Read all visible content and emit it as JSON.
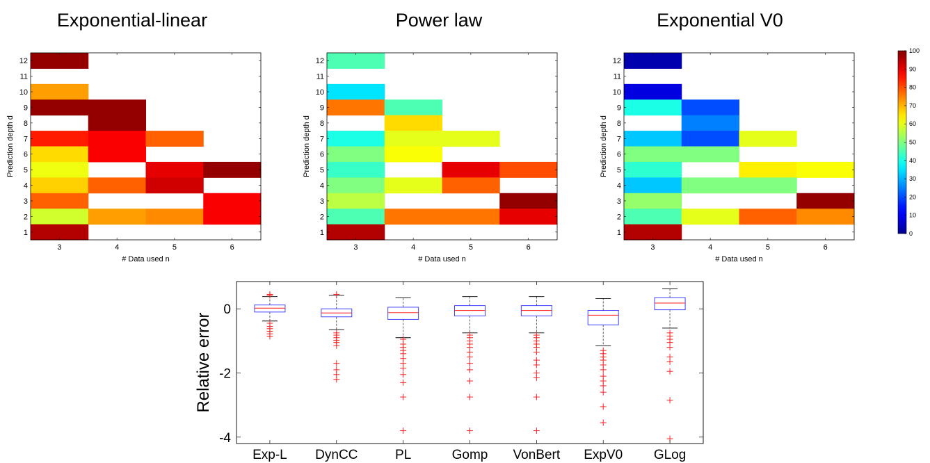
{
  "chart_data": [
    {
      "type": "heatmap",
      "title": "Exponential-linear",
      "xlabel": "# Data used n",
      "ylabel": "Prediction depth d",
      "x_categories": [
        "3",
        "4",
        "5",
        "6"
      ],
      "y_categories": [
        "1",
        "2",
        "3",
        "4",
        "5",
        "6",
        "7",
        "8",
        "9",
        "10",
        "11",
        "12"
      ],
      "clim": [
        0,
        100
      ],
      "cells": [
        {
          "n": "3",
          "d": "12",
          "value": 98
        },
        {
          "n": "3",
          "d": "10",
          "value": 72
        },
        {
          "n": "3",
          "d": "9",
          "value": 98
        },
        {
          "n": "4",
          "d": "9",
          "value": 98
        },
        {
          "n": "4",
          "d": "8",
          "value": 98
        },
        {
          "n": "3",
          "d": "7",
          "value": 85
        },
        {
          "n": "4",
          "d": "7",
          "value": 88
        },
        {
          "n": "5",
          "d": "7",
          "value": 78
        },
        {
          "n": "3",
          "d": "6",
          "value": 66
        },
        {
          "n": "4",
          "d": "6",
          "value": 88
        },
        {
          "n": "3",
          "d": "5",
          "value": 61
        },
        {
          "n": "5",
          "d": "5",
          "value": 90
        },
        {
          "n": "6",
          "d": "5",
          "value": 98
        },
        {
          "n": "3",
          "d": "4",
          "value": 67
        },
        {
          "n": "4",
          "d": "4",
          "value": 78
        },
        {
          "n": "5",
          "d": "4",
          "value": 92
        },
        {
          "n": "3",
          "d": "3",
          "value": 78
        },
        {
          "n": "6",
          "d": "3",
          "value": 88
        },
        {
          "n": "3",
          "d": "2",
          "value": 58
        },
        {
          "n": "4",
          "d": "2",
          "value": 72
        },
        {
          "n": "5",
          "d": "2",
          "value": 74
        },
        {
          "n": "6",
          "d": "2",
          "value": 88
        },
        {
          "n": "3",
          "d": "1",
          "value": 95
        }
      ]
    },
    {
      "type": "heatmap",
      "title": "Power law",
      "xlabel": "# Data used n",
      "ylabel": "Prediction depth d",
      "x_categories": [
        "3",
        "4",
        "5",
        "6"
      ],
      "y_categories": [
        "1",
        "2",
        "3",
        "4",
        "5",
        "6",
        "7",
        "8",
        "9",
        "10",
        "11",
        "12"
      ],
      "clim": [
        0,
        100
      ],
      "cells": [
        {
          "n": "3",
          "d": "12",
          "value": 45
        },
        {
          "n": "3",
          "d": "10",
          "value": 35
        },
        {
          "n": "3",
          "d": "9",
          "value": 76
        },
        {
          "n": "4",
          "d": "9",
          "value": 45
        },
        {
          "n": "4",
          "d": "8",
          "value": 66
        },
        {
          "n": "3",
          "d": "7",
          "value": 40
        },
        {
          "n": "4",
          "d": "7",
          "value": 60
        },
        {
          "n": "5",
          "d": "7",
          "value": 60
        },
        {
          "n": "3",
          "d": "6",
          "value": 50
        },
        {
          "n": "4",
          "d": "6",
          "value": 62
        },
        {
          "n": "3",
          "d": "5",
          "value": 43
        },
        {
          "n": "5",
          "d": "5",
          "value": 90
        },
        {
          "n": "6",
          "d": "5",
          "value": 80
        },
        {
          "n": "3",
          "d": "4",
          "value": 50
        },
        {
          "n": "4",
          "d": "4",
          "value": 60
        },
        {
          "n": "5",
          "d": "4",
          "value": 78
        },
        {
          "n": "3",
          "d": "3",
          "value": 56
        },
        {
          "n": "6",
          "d": "3",
          "value": 98
        },
        {
          "n": "3",
          "d": "2",
          "value": 45
        },
        {
          "n": "4",
          "d": "2",
          "value": 76
        },
        {
          "n": "5",
          "d": "2",
          "value": 76
        },
        {
          "n": "6",
          "d": "2",
          "value": 90
        },
        {
          "n": "3",
          "d": "1",
          "value": 95
        }
      ]
    },
    {
      "type": "heatmap",
      "title": "Exponential V0",
      "xlabel": "# Data used n",
      "ylabel": "Prediction depth d",
      "x_categories": [
        "3",
        "4",
        "5",
        "6"
      ],
      "y_categories": [
        "1",
        "2",
        "3",
        "4",
        "5",
        "6",
        "7",
        "8",
        "9",
        "10",
        "11",
        "12"
      ],
      "clim": [
        0,
        100
      ],
      "cells": [
        {
          "n": "3",
          "d": "12",
          "value": 3
        },
        {
          "n": "3",
          "d": "10",
          "value": 8
        },
        {
          "n": "3",
          "d": "9",
          "value": 40
        },
        {
          "n": "4",
          "d": "9",
          "value": 20
        },
        {
          "n": "4",
          "d": "8",
          "value": 25
        },
        {
          "n": "3",
          "d": "7",
          "value": 32
        },
        {
          "n": "4",
          "d": "7",
          "value": 20
        },
        {
          "n": "5",
          "d": "7",
          "value": 60
        },
        {
          "n": "3",
          "d": "6",
          "value": 50
        },
        {
          "n": "4",
          "d": "6",
          "value": 50
        },
        {
          "n": "3",
          "d": "5",
          "value": 42
        },
        {
          "n": "5",
          "d": "5",
          "value": 64
        },
        {
          "n": "6",
          "d": "5",
          "value": 62
        },
        {
          "n": "3",
          "d": "4",
          "value": 32
        },
        {
          "n": "4",
          "d": "4",
          "value": 50
        },
        {
          "n": "5",
          "d": "4",
          "value": 50
        },
        {
          "n": "3",
          "d": "3",
          "value": 52
        },
        {
          "n": "6",
          "d": "3",
          "value": 98
        },
        {
          "n": "3",
          "d": "2",
          "value": 45
        },
        {
          "n": "4",
          "d": "2",
          "value": 60
        },
        {
          "n": "5",
          "d": "2",
          "value": 78
        },
        {
          "n": "6",
          "d": "2",
          "value": 74
        },
        {
          "n": "3",
          "d": "1",
          "value": 95
        }
      ]
    },
    {
      "type": "colorbar",
      "clim": [
        0,
        100
      ],
      "ticks": [
        "0",
        "10",
        "20",
        "30",
        "40",
        "50",
        "60",
        "70",
        "80",
        "90",
        "100"
      ],
      "colormap": "jet"
    },
    {
      "type": "boxplot",
      "ylabel": "Relative error",
      "ylim": [
        -4.2,
        0.85
      ],
      "yticks": [
        {
          "value": 0,
          "label": "0"
        },
        {
          "value": -2,
          "label": "-2"
        },
        {
          "value": -4,
          "label": "-4"
        }
      ],
      "box_color": "#4040ff",
      "median_color": "#ff3030",
      "outlier_color": "#ff2020",
      "categories": [
        "Exp-L",
        "DynCC",
        "PL",
        "Gomp",
        "VonBert",
        "ExpV0",
        "GLog"
      ],
      "boxes": [
        {
          "name": "Exp-L",
          "whisker_low": -0.38,
          "q1": -0.1,
          "median": 0.02,
          "q3": 0.12,
          "whisker_high": 0.38,
          "outliers": [
            -0.45,
            -0.55,
            -0.62,
            -0.7,
            -0.78,
            -0.86,
            0.42,
            0.45
          ]
        },
        {
          "name": "DynCC",
          "whisker_low": -0.65,
          "q1": -0.25,
          "median": -0.13,
          "q3": 0.0,
          "whisker_high": 0.42,
          "outliers": [
            -0.75,
            -0.82,
            -0.9,
            -0.98,
            -1.05,
            -1.15,
            -1.7,
            -1.9,
            -2.05,
            -2.2,
            0.45
          ]
        },
        {
          "name": "PL",
          "whisker_low": -0.9,
          "q1": -0.33,
          "median": -0.12,
          "q3": 0.05,
          "whisker_high": 0.35,
          "outliers": [
            -0.95,
            -1.1,
            -1.2,
            -1.3,
            -1.4,
            -1.55,
            -1.7,
            -1.85,
            -2.05,
            -2.3,
            -2.75,
            -3.8
          ]
        },
        {
          "name": "Gomp",
          "whisker_low": -0.75,
          "q1": -0.22,
          "median": -0.05,
          "q3": 0.1,
          "whisker_high": 0.38,
          "outliers": [
            -0.82,
            -0.9,
            -1.0,
            -1.1,
            -1.2,
            -1.35,
            -1.5,
            -1.7,
            -1.9,
            -2.25,
            -2.75,
            -3.8
          ]
        },
        {
          "name": "VonBert",
          "whisker_low": -0.75,
          "q1": -0.22,
          "median": -0.05,
          "q3": 0.1,
          "whisker_high": 0.38,
          "outliers": [
            -0.82,
            -0.9,
            -1.0,
            -1.1,
            -1.2,
            -1.35,
            -1.6,
            -1.75,
            -2.0,
            -2.15,
            -2.75,
            -3.8
          ]
        },
        {
          "name": "ExpV0",
          "whisker_low": -1.15,
          "q1": -0.5,
          "median": -0.2,
          "q3": -0.05,
          "whisker_high": 0.32,
          "outliers": [
            -1.3,
            -1.4,
            -1.5,
            -1.6,
            -1.75,
            -1.9,
            -2.1,
            -2.25,
            -2.4,
            -2.6,
            -3.05,
            -3.55
          ]
        },
        {
          "name": "GLog",
          "whisker_low": -0.6,
          "q1": -0.03,
          "median": 0.18,
          "q3": 0.35,
          "whisker_high": 0.62,
          "outliers": [
            -0.75,
            -0.85,
            -0.95,
            -1.05,
            -1.2,
            -1.5,
            -1.65,
            -1.95,
            -2.85,
            -4.05
          ]
        }
      ]
    }
  ]
}
